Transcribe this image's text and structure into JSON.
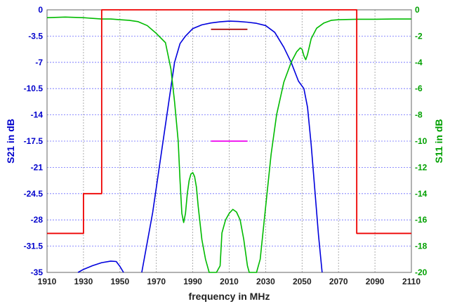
{
  "chart_data": {
    "type": "line",
    "xlabel": "frequency in MHz",
    "ylabel_left": "S21 in dB",
    "ylabel_right": "S11 in dB",
    "xlim": [
      1910,
      2110
    ],
    "ylim_left": [
      -35,
      0
    ],
    "ylim_right": [
      -20,
      0
    ],
    "x_ticks": [
      "1910",
      "1930",
      "1950",
      "1970",
      "1990",
      "2010",
      "2030",
      "2050",
      "2070",
      "2090",
      "2110"
    ],
    "left_ticks": [
      "0",
      "-3.5",
      "-7",
      "-10.5",
      "-14",
      "-17.5",
      "-21",
      "-24.5",
      "-28",
      "-31.5",
      "-35"
    ],
    "right_ticks": [
      "0",
      "-2",
      "-4",
      "-6",
      "-8",
      "-10",
      "-12",
      "-14",
      "-16",
      "-18",
      "-20"
    ],
    "grid": true,
    "colors": {
      "s21": "#0000dd",
      "s11": "#00bb00",
      "mask": "#ee0000",
      "marker_top": "#aa0000",
      "marker_mid": "#ee00ee",
      "left_axis": "#0000cc",
      "right_axis": "#00a000"
    },
    "series": [
      {
        "axis": "left",
        "points": [
          [
            1927,
            -35
          ],
          [
            1930,
            -34.6
          ],
          [
            1935,
            -34.1
          ],
          [
            1940,
            -33.7
          ],
          [
            1945,
            -33.5
          ],
          [
            1948,
            -33.55
          ],
          [
            1950,
            -34.2
          ],
          [
            1952,
            -35
          ]
        ]
      },
      {
        "axis": "left",
        "points": [
          [
            1962,
            -35
          ],
          [
            1965,
            -31
          ],
          [
            1968,
            -27
          ],
          [
            1971,
            -22
          ],
          [
            1974,
            -17
          ],
          [
            1977,
            -12
          ],
          [
            1980,
            -7
          ],
          [
            1983,
            -4.5
          ],
          [
            1986,
            -3.5
          ],
          [
            1990,
            -2.5
          ],
          [
            1995,
            -2
          ],
          [
            2000,
            -1.75
          ],
          [
            2005,
            -1.6
          ],
          [
            2010,
            -1.5
          ],
          [
            2015,
            -1.55
          ],
          [
            2020,
            -1.65
          ],
          [
            2025,
            -1.8
          ],
          [
            2030,
            -2.1
          ],
          [
            2035,
            -3
          ],
          [
            2040,
            -5
          ],
          [
            2044,
            -7
          ],
          [
            2048,
            -9.5
          ],
          [
            2051,
            -10.5
          ],
          [
            2053,
            -13
          ],
          [
            2055,
            -18
          ],
          [
            2057,
            -24
          ],
          [
            2059,
            -30
          ],
          [
            2061,
            -35
          ]
        ]
      },
      {
        "axis": "right",
        "points": [
          [
            1910,
            -0.6
          ],
          [
            1920,
            -0.55
          ],
          [
            1930,
            -0.6
          ],
          [
            1940,
            -0.7
          ],
          [
            1945,
            -0.7
          ],
          [
            1950,
            -0.75
          ],
          [
            1955,
            -0.8
          ],
          [
            1960,
            -0.9
          ],
          [
            1965,
            -1.2
          ],
          [
            1970,
            -1.8
          ],
          [
            1975,
            -2.5
          ],
          [
            1978,
            -4.5
          ],
          [
            1980,
            -7
          ],
          [
            1982,
            -10
          ],
          [
            1983,
            -13
          ],
          [
            1984,
            -15.5
          ],
          [
            1985,
            -16.2
          ],
          [
            1986,
            -15.5
          ],
          [
            1987,
            -14
          ],
          [
            1988,
            -13
          ],
          [
            1989,
            -12.5
          ],
          [
            1990,
            -12.4
          ],
          [
            1991,
            -12.7
          ],
          [
            1992,
            -13.5
          ],
          [
            1993,
            -15
          ],
          [
            1995,
            -17.5
          ],
          [
            1997,
            -19
          ],
          [
            1999,
            -20
          ],
          [
            2001,
            -20
          ],
          [
            2003,
            -20
          ],
          [
            2005,
            -19.5
          ],
          [
            2006,
            -17
          ],
          [
            2008,
            -16
          ],
          [
            2010,
            -15.5
          ],
          [
            2012,
            -15.2
          ],
          [
            2014,
            -15.4
          ],
          [
            2016,
            -16
          ],
          [
            2018,
            -17.5
          ],
          [
            2020,
            -19.5
          ],
          [
            2021,
            -20
          ],
          [
            2023,
            -20
          ],
          [
            2025,
            -20
          ],
          [
            2027,
            -19
          ],
          [
            2030,
            -15
          ],
          [
            2033,
            -11
          ],
          [
            2036,
            -8
          ],
          [
            2040,
            -5.5
          ],
          [
            2044,
            -4
          ],
          [
            2047,
            -3.2
          ],
          [
            2049,
            -2.9
          ],
          [
            2050,
            -3
          ],
          [
            2051,
            -3.5
          ],
          [
            2052,
            -3.8
          ],
          [
            2053,
            -3.4
          ],
          [
            2055,
            -2.2
          ],
          [
            2058,
            -1.4
          ],
          [
            2062,
            -1
          ],
          [
            2066,
            -0.8
          ],
          [
            2070,
            -0.75
          ],
          [
            2080,
            -0.72
          ],
          [
            2090,
            -0.72
          ],
          [
            2100,
            -0.7
          ],
          [
            2110,
            -0.7
          ]
        ]
      },
      {
        "axis": "left",
        "points": [
          [
            1910,
            -29.8
          ],
          [
            1930,
            -29.8
          ],
          [
            1930,
            -24.5
          ],
          [
            1940,
            -24.5
          ],
          [
            1940,
            0
          ],
          [
            2080,
            0
          ],
          [
            2080,
            -29.8
          ],
          [
            2110,
            -29.8
          ]
        ]
      },
      {
        "axis": "left",
        "points": [
          [
            2000,
            -2.6
          ],
          [
            2020,
            -2.6
          ]
        ]
      },
      {
        "axis": "left",
        "points": [
          [
            2000,
            -17.5
          ],
          [
            2020,
            -17.5
          ]
        ]
      }
    ]
  }
}
